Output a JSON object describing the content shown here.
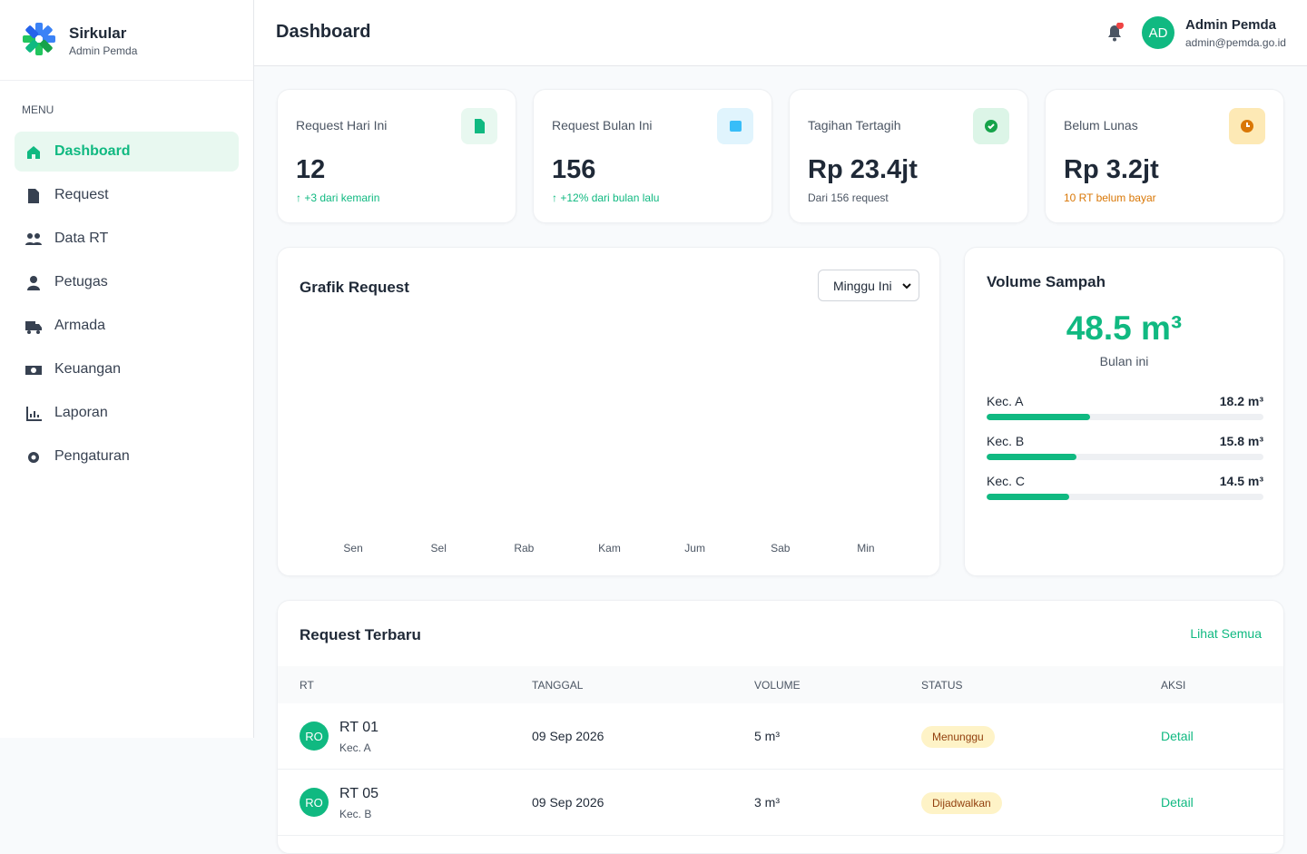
{
  "sidebar": {
    "brand": {
      "name": "Sirkular",
      "subtitle": "Admin Pemda"
    },
    "menu_label": "MENU",
    "menu": [
      {
        "label": "Dashboard",
        "active": true
      },
      {
        "label": "Request",
        "active": false
      },
      {
        "label": "Data RT",
        "active": false
      },
      {
        "label": "Petugas",
        "active": false
      },
      {
        "label": "Armada",
        "active": false
      },
      {
        "label": "Keuangan",
        "active": false
      },
      {
        "label": "Laporan",
        "active": false
      },
      {
        "label": "Pengaturan",
        "active": false
      }
    ]
  },
  "header": {
    "title": "Dashboard",
    "user": {
      "initials": "AD",
      "name": "Admin Pemda",
      "email": "admin@pemda.go.id"
    }
  },
  "stats": [
    {
      "label": "Request Hari Ini",
      "value": "12",
      "note": "↑ +3 dari kemarin"
    },
    {
      "label": "Request Bulan Ini",
      "value": "156",
      "note": "↑ +12% dari bulan lalu"
    },
    {
      "label": "Tagihan Tertagih",
      "value": "Rp 23.4jt",
      "note": "Dari 156 request"
    },
    {
      "label": "Belum Lunas",
      "value": "Rp 3.2jt",
      "note": "10 RT belum bayar"
    }
  ],
  "chart": {
    "title": "Grafik Request",
    "period": "Minggu Ini",
    "days": [
      "Sen",
      "Sel",
      "Rab",
      "Kam",
      "Jum",
      "Sab",
      "Min"
    ]
  },
  "volume": {
    "title": "Volume Sampah",
    "total": 48.5,
    "total_label": "48.5 m³",
    "total_note": "Bulan ini",
    "items": [
      {
        "name": "Kec. A",
        "value": 18.2,
        "value_label": "18.2 m³"
      },
      {
        "name": "Kec. B",
        "value": 15.8,
        "value_label": "15.8 m³"
      },
      {
        "name": "Kec. C",
        "value": 14.5,
        "value_label": "14.5 m³"
      }
    ]
  },
  "table": {
    "title": "Request Terbaru",
    "link": "Lihat Semua",
    "columns": [
      "RT",
      "TANGGAL",
      "VOLUME",
      "STATUS",
      "AKSI"
    ],
    "rows": [
      {
        "avatar": "RO",
        "rt": "RT 01",
        "kec": "Kec. A",
        "date": "09 Sep 2026",
        "volume": "5 m³",
        "status": "Menunggu",
        "action": "Detail"
      },
      {
        "avatar": "RO",
        "rt": "RT 05",
        "kec": "Kec. B",
        "date": "09 Sep 2026",
        "volume": "3 m³",
        "status": "Dijadwalkan",
        "action": "Detail"
      }
    ]
  }
}
